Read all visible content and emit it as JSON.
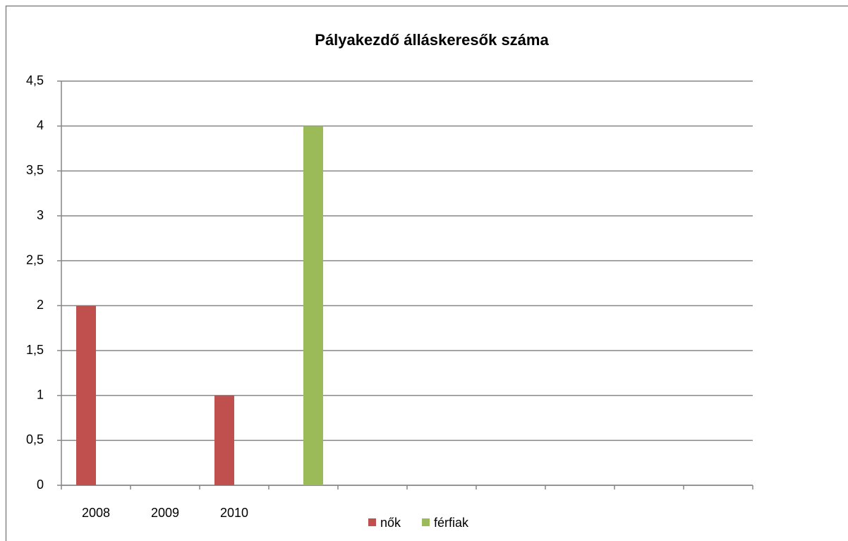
{
  "chart_data": {
    "type": "bar",
    "title": "Pályakezdő álláskeresők száma",
    "categories": [
      "2008",
      "2009",
      "2010",
      null,
      null,
      null,
      null,
      null,
      null,
      null
    ],
    "series": [
      {
        "name": "nők",
        "color": "#c0504d",
        "values": [
          2,
          null,
          1,
          null,
          null,
          null,
          null,
          null,
          null,
          null
        ]
      },
      {
        "name": "férfiak",
        "color": "#9bbb59",
        "values": [
          null,
          null,
          null,
          4,
          null,
          null,
          null,
          null,
          null,
          null
        ]
      }
    ],
    "ylim": [
      0,
      4.5
    ],
    "yticks": [
      0,
      {
        "value": 0.5,
        "label": "0,5"
      },
      1,
      {
        "value": 1.5,
        "label": "1,5"
      },
      2,
      {
        "value": 2.5,
        "label": "2,5"
      },
      3,
      {
        "value": 3.5,
        "label": "3,5"
      },
      4,
      {
        "value": 4.5,
        "label": "4,5"
      }
    ],
    "grid": true,
    "legend": "bottom"
  }
}
